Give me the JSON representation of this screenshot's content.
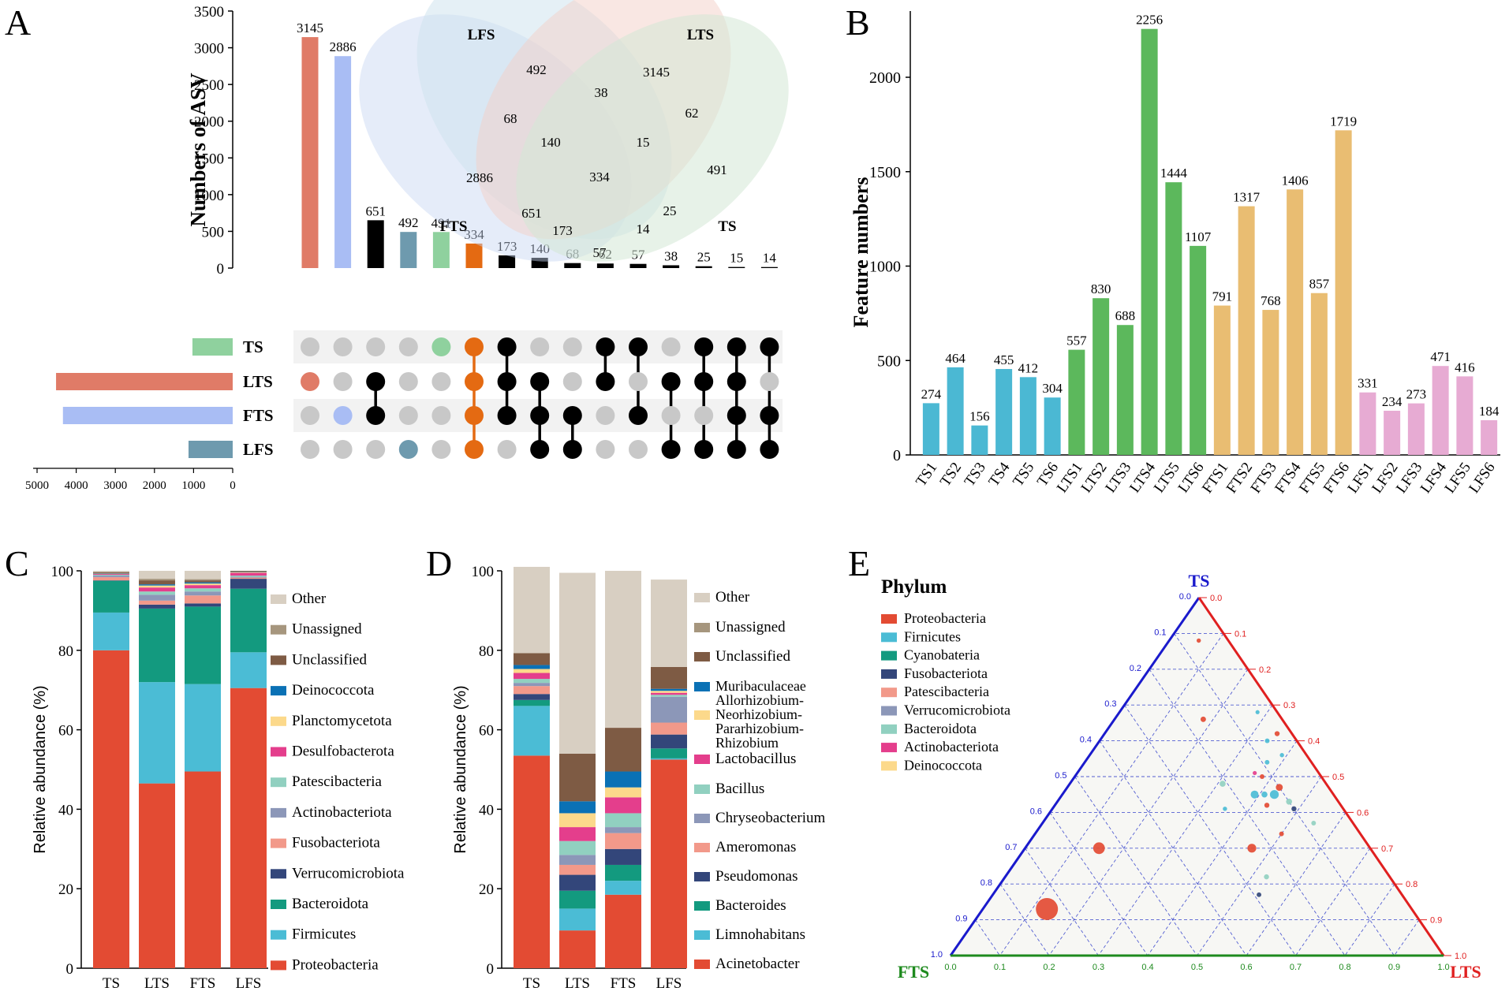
{
  "panel_letters": {
    "a": "A",
    "b": "B",
    "c": "C",
    "d": "D",
    "e": "E"
  },
  "colors": {
    "TS": "#8fd19e",
    "LTS": "#e07b67",
    "FTS": "#a9bdf4",
    "LFS": "#6e9aae",
    "core": "#e46a12",
    "grey_dot": "#c8c8c8",
    "black": "#000000",
    "b_TS": "#4bb8d3",
    "b_LTS": "#5cb85c",
    "b_FTS": "#e9bd72",
    "b_LFS": "#e7abd3",
    "ternary_TS_axis": "#1a1acc",
    "ternary_LTS_axis": "#e02020",
    "ternary_FTS_axis": "#1e8a1e"
  },
  "chart_data": [
    {
      "id": "A_upset",
      "type": "bar",
      "ylabel": "Numbers of ASV",
      "ylim": [
        0,
        3500
      ],
      "yticks": [
        "0",
        "500",
        "1000",
        "1500",
        "2000",
        "2500",
        "3000",
        "3500"
      ],
      "values": [
        3145,
        2886,
        651,
        492,
        491,
        334,
        173,
        140,
        68,
        62,
        57,
        38,
        25,
        15,
        14
      ],
      "value_labels": [
        "3145",
        "2886",
        "651",
        "492",
        "491",
        "334",
        "173",
        "140",
        "68",
        "62",
        "57",
        "38",
        "25",
        "15",
        "14"
      ],
      "bar_colors": [
        "#e07b67",
        "#a9bdf4",
        "#000000",
        "#6e9aae",
        "#8fd19e",
        "#e46a12",
        "#000000",
        "#000000",
        "#000000",
        "#000000",
        "#000000",
        "#000000",
        "#000000",
        "#000000",
        "#000000"
      ],
      "sets": [
        "TS",
        "LTS",
        "FTS",
        "LFS"
      ],
      "set_sizes": [
        1029,
        4515,
        4339,
        1129
      ],
      "set_size_ticks": [
        "5000",
        "4000",
        "3000",
        "2000",
        "1000",
        "0"
      ],
      "intersections": [
        [
          "LTS"
        ],
        [
          "FTS"
        ],
        [
          "LTS",
          "FTS"
        ],
        [
          "LFS"
        ],
        [
          "TS"
        ],
        [
          "TS",
          "LTS",
          "FTS",
          "LFS"
        ],
        [
          "TS",
          "LTS",
          "FTS"
        ],
        [
          "LTS",
          "FTS",
          "LFS"
        ],
        [
          "FTS",
          "LFS"
        ],
        [
          "TS",
          "LTS"
        ],
        [
          "TS",
          "FTS"
        ],
        [
          "LTS",
          "LFS"
        ],
        [
          "TS",
          "LTS",
          "LFS"
        ],
        [
          "TS",
          "LTS",
          "FTS",
          "LFS"
        ],
        [
          "TS",
          "FTS",
          "LFS"
        ]
      ],
      "intersections_note": "dot-matrix reading is approximate",
      "venn": {
        "labels": [
          "LFS",
          "LTS",
          "FTS",
          "TS"
        ],
        "regions": [
          "492",
          "3145",
          "38",
          "68",
          "62",
          "140",
          "15",
          "2886",
          "334",
          "491",
          "651",
          "25",
          "173",
          "14",
          "57"
        ]
      }
    },
    {
      "id": "B_features",
      "type": "bar",
      "ylabel": "Feature numbers",
      "ylim": [
        0,
        2400
      ],
      "yticks": [
        "0",
        "500",
        "1000",
        "1500",
        "2000"
      ],
      "categories": [
        "TS1",
        "TS2",
        "TS3",
        "TS4",
        "TS5",
        "TS6",
        "LTS1",
        "LTS2",
        "LTS3",
        "LTS4",
        "LTS5",
        "LTS6",
        "FTS1",
        "FTS2",
        "FTS3",
        "FTS4",
        "FTS5",
        "FTS6",
        "LFS1",
        "LFS2",
        "LFS3",
        "LFS4",
        "LFS5",
        "LFS6"
      ],
      "values": [
        274,
        464,
        156,
        455,
        412,
        304,
        557,
        830,
        688,
        2256,
        1444,
        1107,
        791,
        1317,
        768,
        1406,
        857,
        1719,
        331,
        234,
        273,
        471,
        416,
        184
      ],
      "value_labels": [
        "274",
        "464",
        "156",
        "455",
        "412",
        "304",
        "557",
        "830",
        "688",
        "2256",
        "1444",
        "1107",
        "791",
        "1317",
        "768",
        "1406",
        "857",
        "1719",
        "331",
        "234",
        "273",
        "471",
        "416",
        "184"
      ],
      "groups": [
        "TS",
        "TS",
        "TS",
        "TS",
        "TS",
        "TS",
        "LTS",
        "LTS",
        "LTS",
        "LTS",
        "LTS",
        "LTS",
        "FTS",
        "FTS",
        "FTS",
        "FTS",
        "FTS",
        "FTS",
        "LFS",
        "LFS",
        "LFS",
        "LFS",
        "LFS",
        "LFS"
      ]
    },
    {
      "id": "C_phylum",
      "type": "bar",
      "stacked": true,
      "ylabel": "Relative abundance (%)",
      "ylim": [
        0,
        100
      ],
      "yticks": [
        "0",
        "20",
        "40",
        "60",
        "80",
        "100"
      ],
      "categories": [
        "TS",
        "LTS",
        "FTS",
        "LFS"
      ],
      "legend": [
        "Other",
        "Unassigned",
        "Unclassified",
        "Deinococcota",
        "Planctomycetota",
        "Desulfobacterota",
        "Patescibacteria",
        "Actinobacteriota",
        "Fusobacteriota",
        "Verrucomicrobiota",
        "Bacteroidota",
        "Firmicutes",
        "Proteobacteria"
      ],
      "series": [
        {
          "name": "Proteobacteria",
          "color": "#e34b33",
          "values": [
            80,
            46.5,
            49.5,
            70.5
          ]
        },
        {
          "name": "Firmicutes",
          "color": "#4bbcd5",
          "values": [
            9.5,
            25.5,
            22,
            9
          ]
        },
        {
          "name": "Bacteroidota",
          "color": "#139a7f",
          "values": [
            8,
            18.5,
            19.5,
            16
          ]
        },
        {
          "name": "Verrucomicrobiota",
          "color": "#33467a",
          "values": [
            0.1,
            1,
            0.8,
            2.5
          ]
        },
        {
          "name": "Fusobacteriota",
          "color": "#f2998a",
          "values": [
            0.8,
            1,
            2,
            0.3
          ]
        },
        {
          "name": "Actinobacteriota",
          "color": "#8c97b8",
          "values": [
            0.4,
            1.5,
            1,
            0.2
          ]
        },
        {
          "name": "Patescibacteria",
          "color": "#91d0c0",
          "values": [
            0.2,
            0.8,
            0.8,
            0.3
          ]
        },
        {
          "name": "Desulfobacterota",
          "color": "#e43e8c",
          "values": [
            0.2,
            1,
            0.8,
            0.7
          ]
        },
        {
          "name": "Planctomycetota",
          "color": "#fcd98b",
          "values": [
            0.1,
            0.5,
            0.4,
            0.2
          ]
        },
        {
          "name": "Deinococcota",
          "color": "#0a71b5",
          "values": [
            0.1,
            0.3,
            0.3,
            0.1
          ]
        },
        {
          "name": "Unclassified",
          "color": "#7e5b44",
          "values": [
            0.2,
            1,
            0.5,
            0.2
          ]
        },
        {
          "name": "Unassigned",
          "color": "#a6967e",
          "values": [
            0.1,
            0.4,
            0.3,
            0
          ]
        },
        {
          "name": "Other",
          "color": "#d8cfc2",
          "values": [
            0.3,
            2,
            2.1,
            0
          ]
        }
      ]
    },
    {
      "id": "D_genus",
      "type": "bar",
      "stacked": true,
      "ylabel": "Relative abundance (%)",
      "ylim": [
        0,
        100
      ],
      "yticks": [
        "0",
        "20",
        "40",
        "60",
        "80",
        "100"
      ],
      "categories": [
        "TS",
        "LTS",
        "FTS",
        "LFS"
      ],
      "legend": [
        "Other",
        "Unassigned",
        "Unclassified",
        "Muribaculaceae",
        "Allorhizobium-Neorhizobium-Pararhizobium-Rhizobium",
        "Lactobacillus",
        "Bacillus",
        "Chryseobacterium",
        "Ameromonas",
        "Pseudomonas",
        "Bacteroides",
        "Limnohabitans",
        "Acinetobacter"
      ],
      "legend_lines": [
        "Other",
        "Unassigned",
        "Unclassified",
        "Muribaculaceae",
        "Allorhizobium-",
        "Neorhizobium-",
        "Pararhizobium-",
        "Rhizobium",
        "Lactobacillus",
        "Bacillus",
        "Chryseobacterium",
        "Ameromonas",
        "Pseudomonas",
        "Bacteroides",
        "Limnohabitans",
        "Acinetobacter"
      ],
      "series": [
        {
          "name": "Acinetobacter",
          "color": "#e34b33",
          "values": [
            53.5,
            9.5,
            18.5,
            52.5
          ]
        },
        {
          "name": "Limnohabitans",
          "color": "#4bbcd5",
          "values": [
            12.5,
            5.5,
            3.5,
            0.3
          ]
        },
        {
          "name": "Bacteroides",
          "color": "#139a7f",
          "values": [
            1.5,
            4.5,
            4,
            2.5
          ]
        },
        {
          "name": "Pseudomonas",
          "color": "#33467a",
          "values": [
            1.5,
            4,
            4,
            3.5
          ]
        },
        {
          "name": "Ameromonas",
          "color": "#f2998a",
          "values": [
            2,
            2.5,
            4,
            3
          ]
        },
        {
          "name": "Chryseobacterium",
          "color": "#8c97b8",
          "values": [
            0.8,
            2.5,
            1.5,
            6.5
          ]
        },
        {
          "name": "Bacillus",
          "color": "#91d0c0",
          "values": [
            1,
            3.5,
            3.5,
            0.5
          ]
        },
        {
          "name": "Lactobacillus",
          "color": "#e43e8c",
          "values": [
            1.5,
            3.5,
            4,
            0.5
          ]
        },
        {
          "name": "Allorhizobium-Neorhizobium-Pararhizobium-Rhizobium",
          "color": "#fcd98b",
          "values": [
            1,
            3.5,
            2.5,
            0.5
          ]
        },
        {
          "name": "Muribaculaceae",
          "color": "#0a71b5",
          "values": [
            1,
            3,
            4,
            0.5
          ]
        },
        {
          "name": "Unclassified",
          "color": "#7e5b44",
          "values": [
            3,
            12,
            11,
            5.5
          ]
        },
        {
          "name": "Unassigned",
          "color": "#a6967e",
          "values": [
            0,
            0,
            0,
            0
          ]
        },
        {
          "name": "Other",
          "color": "#d8cfc2",
          "values": [
            21.7,
            45.5,
            39.5,
            22
          ]
        }
      ]
    },
    {
      "id": "E_ternary",
      "type": "scatter",
      "title": "Phylum",
      "axes": {
        "top": "TS",
        "right": "LTS",
        "left": "FTS"
      },
      "ticks": [
        "0.0",
        "0.1",
        "0.2",
        "0.3",
        "0.4",
        "0.5",
        "0.6",
        "0.7",
        "0.8",
        "0.9",
        "1.0"
      ],
      "legend": [
        {
          "name": "Proteobacteria",
          "color": "#e34b33"
        },
        {
          "name": "Firnicutes",
          "color": "#4bbcd5"
        },
        {
          "name": "Cyanobateria",
          "color": "#139a7f"
        },
        {
          "name": "Fusobacteriota",
          "color": "#33467a"
        },
        {
          "name": "Patescibacteria",
          "color": "#f2998a"
        },
        {
          "name": "Verrucomicrobiota",
          "color": "#8c97b8"
        },
        {
          "name": "Bacteroidota",
          "color": "#91d0c0"
        },
        {
          "name": "Actinobacteriota",
          "color": "#e43e8c"
        },
        {
          "name": "Deinococcota",
          "color": "#fcd98b"
        }
      ],
      "points": [
        {
          "ts": 0.13,
          "lts": 0.13,
          "fts": 0.74,
          "size": 1.0,
          "c": "#e34b33"
        },
        {
          "ts": 0.3,
          "lts": 0.15,
          "fts": 0.55,
          "size": 0.45,
          "c": "#e34b33"
        },
        {
          "ts": 0.3,
          "lts": 0.46,
          "fts": 0.24,
          "size": 0.3,
          "c": "#e34b33"
        },
        {
          "ts": 0.45,
          "lts": 0.39,
          "fts": 0.16,
          "size": 0.25,
          "c": "#4bbcd5"
        },
        {
          "ts": 0.45,
          "lts": 0.43,
          "fts": 0.12,
          "size": 0.3,
          "c": "#4bbcd5"
        },
        {
          "ts": 0.47,
          "lts": 0.43,
          "fts": 0.1,
          "size": 0.2,
          "c": "#e34b33"
        },
        {
          "ts": 0.45,
          "lts": 0.41,
          "fts": 0.14,
          "size": 0.15,
          "c": "#4bbcd5"
        },
        {
          "ts": 0.43,
          "lts": 0.47,
          "fts": 0.1,
          "size": 0.15,
          "c": "#91d0c0"
        },
        {
          "ts": 0.48,
          "lts": 0.31,
          "fts": 0.21,
          "size": 0.15,
          "c": "#91d0c0"
        },
        {
          "ts": 0.41,
          "lts": 0.49,
          "fts": 0.1,
          "size": 0.1,
          "c": "#33467a"
        },
        {
          "ts": 0.42,
          "lts": 0.43,
          "fts": 0.15,
          "size": 0.1,
          "c": "#e34b33"
        },
        {
          "ts": 0.5,
          "lts": 0.38,
          "fts": 0.12,
          "size": 0.08,
          "c": "#e34b33"
        },
        {
          "ts": 0.54,
          "lts": 0.37,
          "fts": 0.09,
          "size": 0.08,
          "c": "#4bbcd5"
        },
        {
          "ts": 0.62,
          "lts": 0.35,
          "fts": 0.03,
          "size": 0.1,
          "c": "#e34b33"
        },
        {
          "ts": 0.6,
          "lts": 0.34,
          "fts": 0.06,
          "size": 0.08,
          "c": "#4bbcd5"
        },
        {
          "ts": 0.37,
          "lts": 0.55,
          "fts": 0.08,
          "size": 0.08,
          "c": "#91d0c0"
        },
        {
          "ts": 0.34,
          "lts": 0.5,
          "fts": 0.16,
          "size": 0.08,
          "c": "#e34b33"
        },
        {
          "ts": 0.17,
          "lts": 0.54,
          "fts": 0.29,
          "size": 0.08,
          "c": "#33467a"
        },
        {
          "ts": 0.22,
          "lts": 0.53,
          "fts": 0.25,
          "size": 0.1,
          "c": "#91d0c0"
        },
        {
          "ts": 0.41,
          "lts": 0.35,
          "fts": 0.24,
          "size": 0.06,
          "c": "#4bbcd5"
        },
        {
          "ts": 0.66,
          "lts": 0.18,
          "fts": 0.16,
          "size": 0.12,
          "c": "#e34b33"
        },
        {
          "ts": 0.56,
          "lts": 0.39,
          "fts": 0.05,
          "size": 0.06,
          "c": "#4bbcd5"
        },
        {
          "ts": 0.88,
          "lts": 0.06,
          "fts": 0.06,
          "size": 0.06,
          "c": "#e34b33"
        },
        {
          "ts": 0.68,
          "lts": 0.28,
          "fts": 0.04,
          "size": 0.05,
          "c": "#4bbcd5"
        },
        {
          "ts": 0.51,
          "lts": 0.36,
          "fts": 0.13,
          "size": 0.05,
          "c": "#e43e8c"
        }
      ]
    }
  ]
}
